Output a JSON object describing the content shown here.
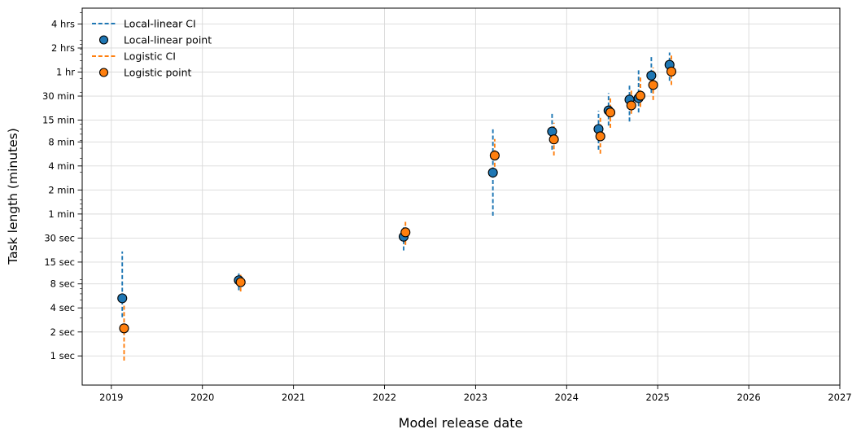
{
  "figure": {
    "xlabel": "Model release date",
    "ylabel": "Task length (minutes)"
  },
  "legend": {
    "position": "upper-left",
    "frame": false,
    "items": [
      {
        "label": "Local-linear CI",
        "sample": "dashed-line",
        "color": "#1f77b4"
      },
      {
        "label": "Local-linear point",
        "sample": "circle-marker",
        "color": "#1f77b4"
      },
      {
        "label": "Logistic CI",
        "sample": "dashed-line",
        "color": "#ff7f0e"
      },
      {
        "label": "Logistic point",
        "sample": "circle-marker",
        "color": "#ff7f0e"
      }
    ]
  },
  "colors": {
    "local_linear": "#1f77b4",
    "logistic": "#ff7f0e",
    "grid": "#d9d9d9",
    "axis": "#000000",
    "marker_edge": "#000000",
    "background": "#ffffff"
  },
  "chart_data": {
    "type": "scatter",
    "title": "",
    "xlabel": "Model release date",
    "ylabel": "Task length (minutes)",
    "grid": true,
    "legend_position": "upper-left",
    "x_axis": {
      "ticks": [
        2019,
        2020,
        2021,
        2022,
        2023,
        2024,
        2025,
        2026,
        2027
      ],
      "range": [
        2018.68,
        2027.0
      ],
      "unit": "year"
    },
    "y_axis": {
      "scale": "log",
      "unit": "minutes",
      "range_minutes": [
        0.0072,
        379
      ],
      "ticks": [
        {
          "label": "4 hrs",
          "minutes": 240
        },
        {
          "label": "2 hrs",
          "minutes": 120
        },
        {
          "label": "1 hr",
          "minutes": 60
        },
        {
          "label": "30 min",
          "minutes": 30
        },
        {
          "label": "15 min",
          "minutes": 15
        },
        {
          "label": "8 min",
          "minutes": 8
        },
        {
          "label": "4 min",
          "minutes": 4
        },
        {
          "label": "2 min",
          "minutes": 2
        },
        {
          "label": "1 min",
          "minutes": 1
        },
        {
          "label": "30 sec",
          "minutes": 0.5
        },
        {
          "label": "15 sec",
          "minutes": 0.25
        },
        {
          "label": "8 sec",
          "minutes": 0.1333
        },
        {
          "label": "4 sec",
          "minutes": 0.0667
        },
        {
          "label": "2 sec",
          "minutes": 0.0333
        },
        {
          "label": "1 sec",
          "minutes": 0.0167
        }
      ]
    },
    "series": [
      {
        "name": "Local-linear",
        "color": "#1f77b4",
        "marker": "circle",
        "ci_style": "dashed",
        "x_offset_years": 0.0,
        "points": [
          {
            "x": 2019.12,
            "y_minutes": 0.088,
            "ci_lo": 0.051,
            "ci_hi": 0.34
          },
          {
            "x": 2020.4,
            "y_minutes": 0.148,
            "ci_lo": 0.111,
            "ci_hi": 0.185
          },
          {
            "x": 2022.21,
            "y_minutes": 0.52,
            "ci_lo": 0.35,
            "ci_hi": 0.73
          },
          {
            "x": 2023.19,
            "y_minutes": 3.3,
            "ci_lo": 0.95,
            "ci_hi": 11.5
          },
          {
            "x": 2023.84,
            "y_minutes": 10.8,
            "ci_lo": 6.4,
            "ci_hi": 18.9
          },
          {
            "x": 2024.35,
            "y_minutes": 11.6,
            "ci_lo": 6.4,
            "ci_hi": 19.6
          },
          {
            "x": 2024.46,
            "y_minutes": 19.8,
            "ci_lo": 12.8,
            "ci_hi": 32.7
          },
          {
            "x": 2024.69,
            "y_minutes": 27.1,
            "ci_lo": 14.4,
            "ci_hi": 41.5
          },
          {
            "x": 2024.79,
            "y_minutes": 28.3,
            "ci_lo": 18.7,
            "ci_hi": 64.0
          },
          {
            "x": 2024.93,
            "y_minutes": 54.2,
            "ci_lo": 32.9,
            "ci_hi": 98.0
          },
          {
            "x": 2025.13,
            "y_minutes": 74.0,
            "ci_lo": 46.6,
            "ci_hi": 105.5
          }
        ]
      },
      {
        "name": "Logistic",
        "color": "#ff7f0e",
        "marker": "circle",
        "ci_style": "dashed",
        "x_offset_years": 0.02,
        "points": [
          {
            "x": 2019.12,
            "y_minutes": 0.037,
            "ci_lo": 0.0146,
            "ci_hi": 0.0725
          },
          {
            "x": 2020.4,
            "y_minutes": 0.14,
            "ci_lo": 0.107,
            "ci_hi": 0.175
          },
          {
            "x": 2022.21,
            "y_minutes": 0.59,
            "ci_lo": 0.41,
            "ci_hi": 0.8
          },
          {
            "x": 2023.19,
            "y_minutes": 5.4,
            "ci_lo": 3.9,
            "ci_hi": 8.7
          },
          {
            "x": 2023.84,
            "y_minutes": 8.6,
            "ci_lo": 5.4,
            "ci_hi": 13.9
          },
          {
            "x": 2024.35,
            "y_minutes": 9.4,
            "ci_lo": 5.7,
            "ci_hi": 16.0
          },
          {
            "x": 2024.46,
            "y_minutes": 18.7,
            "ci_lo": 12.0,
            "ci_hi": 29.0
          },
          {
            "x": 2024.69,
            "y_minutes": 22.9,
            "ci_lo": 18.0,
            "ci_hi": 37.0
          },
          {
            "x": 2024.79,
            "y_minutes": 30.3,
            "ci_lo": 21.9,
            "ci_hi": 52.6
          },
          {
            "x": 2024.93,
            "y_minutes": 41.3,
            "ci_lo": 26.8,
            "ci_hi": 68.5
          },
          {
            "x": 2025.13,
            "y_minutes": 60.9,
            "ci_lo": 41.3,
            "ci_hi": 101.6
          }
        ]
      }
    ]
  }
}
